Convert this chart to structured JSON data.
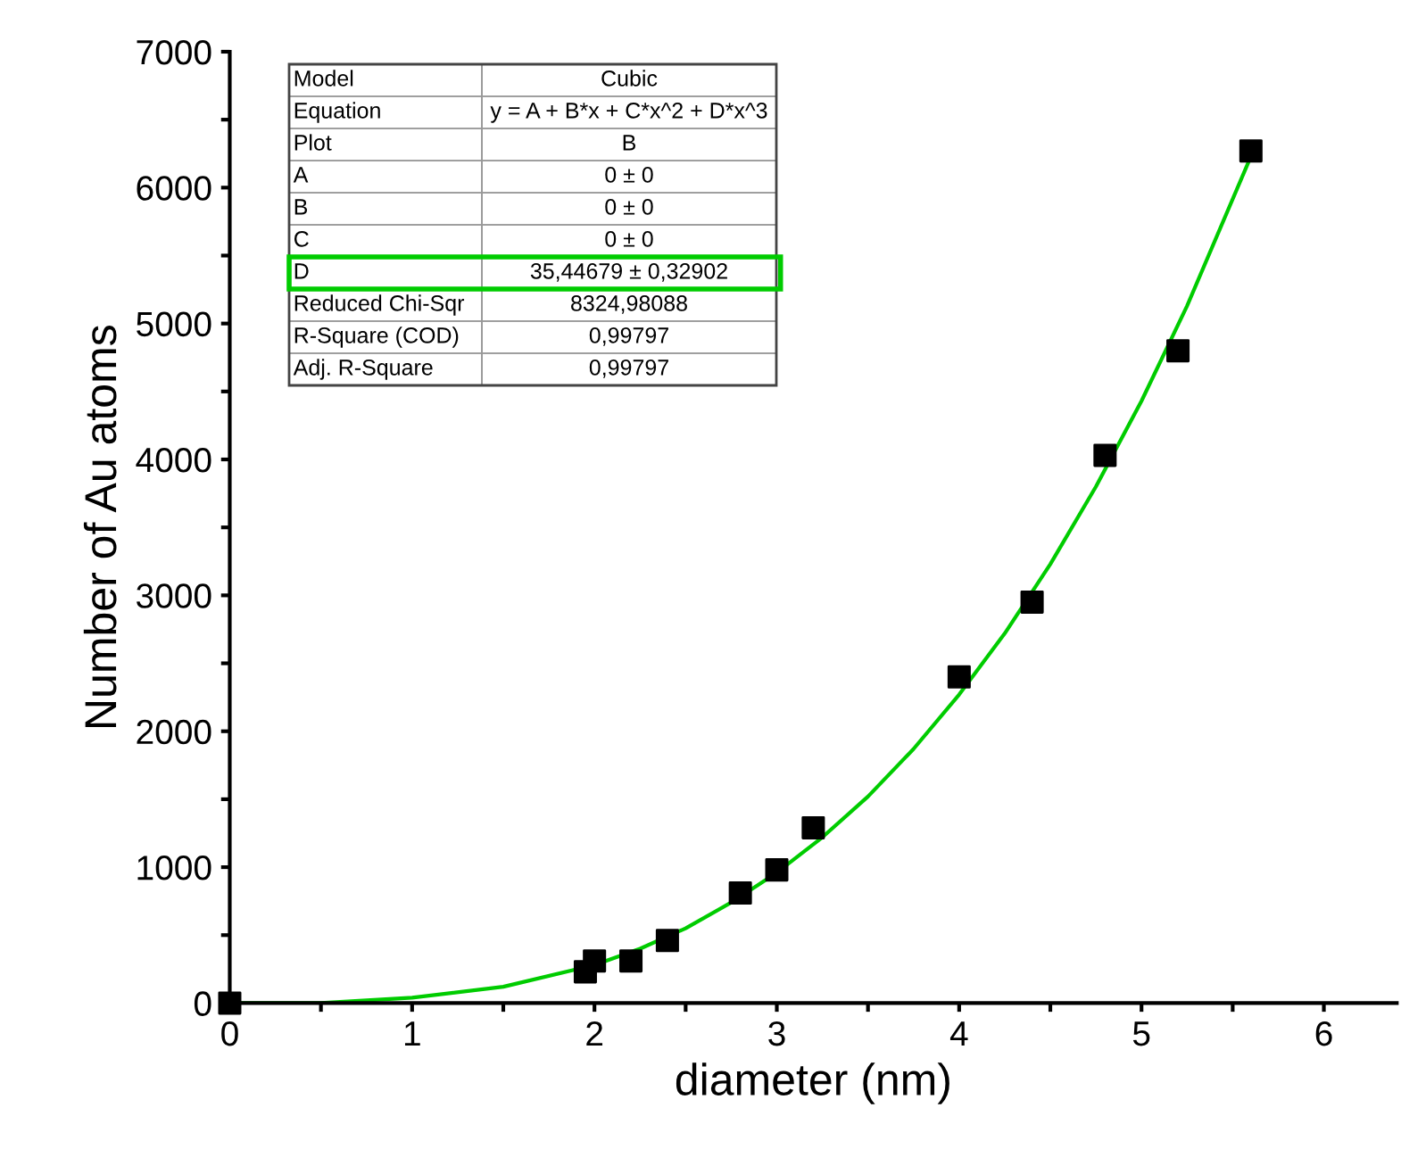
{
  "chart_data": {
    "type": "scatter",
    "xlabel": "diameter (nm)",
    "ylabel": "Number of Au atoms",
    "xlim": [
      0,
      6.4
    ],
    "ylim": [
      0,
      7000
    ],
    "xticks": [
      0,
      {
        "value": 0.5,
        "label": null
      },
      1,
      {
        "value": 1.5,
        "label": null
      },
      2,
      {
        "value": 2.5,
        "label": null
      },
      3,
      {
        "value": 3.5,
        "label": null
      },
      4,
      {
        "value": 4.5,
        "label": null
      },
      5,
      {
        "value": 5.5,
        "label": null
      },
      6
    ],
    "yticks": [
      0,
      {
        "value": 500,
        "label": null
      },
      1000,
      {
        "value": 1500,
        "label": null
      },
      2000,
      {
        "value": 2500,
        "label": null
      },
      3000,
      {
        "value": 3500,
        "label": null
      },
      4000,
      {
        "value": 4500,
        "label": null
      },
      5000,
      {
        "value": 5500,
        "label": null
      },
      6000,
      {
        "value": 6500,
        "label": null
      },
      7000
    ],
    "grid": false,
    "marker": "square",
    "series": [
      {
        "color": "#000000",
        "x": [
          0,
          1.95,
          2.0,
          2.2,
          2.4,
          2.8,
          3.0,
          3.2,
          4.0,
          4.4,
          4.8,
          5.2,
          5.6
        ],
        "values": [
          0,
          230,
          310,
          310,
          460,
          810,
          980,
          1290,
          2400,
          2950,
          4030,
          4800,
          6270
        ]
      },
      {
        "type": "line",
        "color": "#00cc00",
        "marker": "none",
        "line_style": "solid",
        "x": [
          0,
          0.5,
          1,
          1.5,
          2,
          2.25,
          2.5,
          2.75,
          3,
          3.25,
          3.5,
          3.75,
          4,
          4.25,
          4.5,
          4.75,
          5,
          5.25,
          5.6
        ],
        "values": [
          0,
          0,
          40,
          120,
          280,
          400,
          550,
          740,
          960,
          1220,
          1520,
          1870,
          2270,
          2720,
          3230,
          3800,
          4430,
          5130,
          6230
        ]
      }
    ],
    "annotations": [
      "Model",
      "Cubic",
      "Equation",
      "y = A + B*x + C*x^2 + D*x^3",
      "Plot",
      "B",
      "A",
      "0 ± 0",
      "B",
      "0 ± 0",
      "C",
      "0 ± 0",
      "D",
      "35,44679 ± 0,32902",
      "Reduced Chi-Sqr",
      "8324,98088",
      "R-Square (COD)",
      "0,99797",
      "Adj. R-Square",
      "0,99797"
    ]
  }
}
